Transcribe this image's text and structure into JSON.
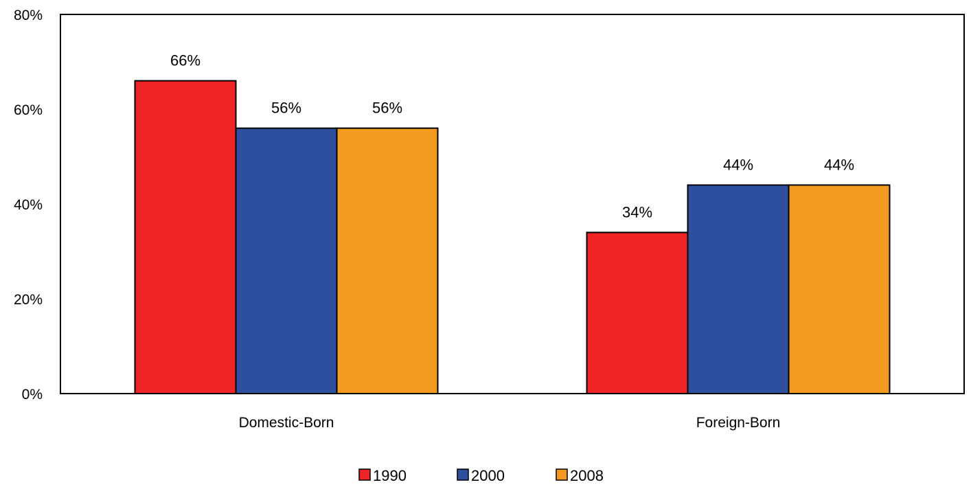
{
  "chart_data": {
    "type": "bar",
    "categories": [
      "Domestic-Born",
      "Foreign-Born"
    ],
    "series": [
      {
        "name": "1990",
        "values": [
          66,
          34
        ],
        "labels": [
          "66%",
          "34%"
        ]
      },
      {
        "name": "2000",
        "values": [
          56,
          44
        ],
        "labels": [
          "56%",
          "44%"
        ]
      },
      {
        "name": "2008",
        "values": [
          56,
          44
        ],
        "labels": [
          "56%",
          "44%"
        ]
      }
    ],
    "ylim": [
      0,
      80
    ],
    "yticks": [
      0,
      20,
      40,
      60,
      80
    ],
    "ytick_labels": [
      "0%",
      "20%",
      "40%",
      "60%",
      "80%"
    ],
    "grid": false,
    "legend_position": "bottom"
  },
  "colors": {
    "1990": "#ee2426",
    "2000": "#2e4f9e",
    "2008": "#f39a20"
  }
}
